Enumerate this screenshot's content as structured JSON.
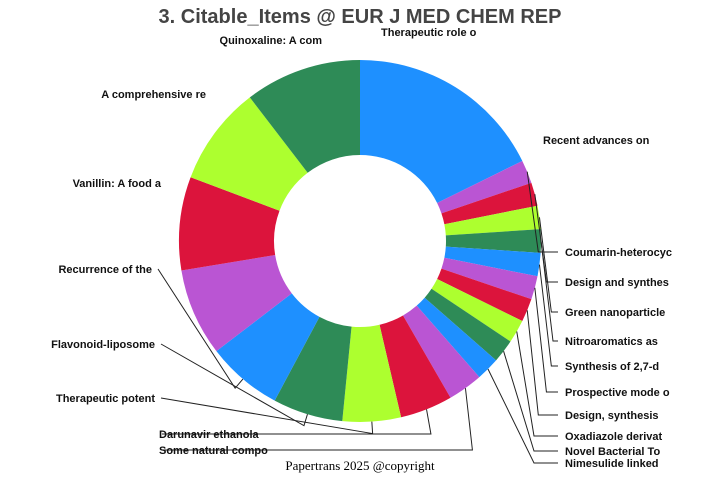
{
  "footer": "Papertrans 2025 @copyright",
  "chart_data": {
    "type": "pie",
    "donut": true,
    "title": "3. Citable_Items @ EUR J MED CHEM REP",
    "legend": "none",
    "slices": [
      {
        "label": "Recent advances on",
        "value": 17.0,
        "color": "#1e90ff"
      },
      {
        "label": "Coumarin-heterocyc",
        "value": 2.0,
        "color": "#ba55d3"
      },
      {
        "label": "Design and synthes",
        "value": 2.0,
        "color": "#dc143c"
      },
      {
        "label": "Green nanoparticle",
        "value": 2.0,
        "color": "#adff2f"
      },
      {
        "label": "Nitroaromatics as",
        "value": 2.0,
        "color": "#2e8b57"
      },
      {
        "label": "Synthesis of 2,7-d",
        "value": 2.0,
        "color": "#1e90ff"
      },
      {
        "label": "Prospective mode o",
        "value": 2.0,
        "color": "#ba55d3"
      },
      {
        "label": "Design, synthesis",
        "value": 2.0,
        "color": "#dc143c"
      },
      {
        "label": "Oxadiazole derivat",
        "value": 2.0,
        "color": "#adff2f"
      },
      {
        "label": "Novel Bacterial To",
        "value": 2.0,
        "color": "#2e8b57"
      },
      {
        "label": "Nimesulide linked",
        "value": 2.0,
        "color": "#1e90ff"
      },
      {
        "label": "Some natural compo",
        "value": 3.0,
        "color": "#ba55d3"
      },
      {
        "label": "Darunavir ethanola",
        "value": 4.5,
        "color": "#dc143c"
      },
      {
        "label": "Therapeutic potent",
        "value": 5.0,
        "color": "#adff2f"
      },
      {
        "label": "Flavonoid-liposome",
        "value": 6.0,
        "color": "#2e8b57"
      },
      {
        "label": "Recurrence of the",
        "value": 6.5,
        "color": "#1e90ff"
      },
      {
        "label": "Vanillin: A food a",
        "value": 7.5,
        "color": "#ba55d3"
      },
      {
        "label": "A comprehensive re",
        "value": 8.0,
        "color": "#dc143c"
      },
      {
        "label": "Quinoxaline: A com",
        "value": 8.5,
        "color": "#adff2f"
      },
      {
        "label": "Therapeutic role o",
        "value": 10.0,
        "color": "#2e8b57"
      }
    ]
  }
}
